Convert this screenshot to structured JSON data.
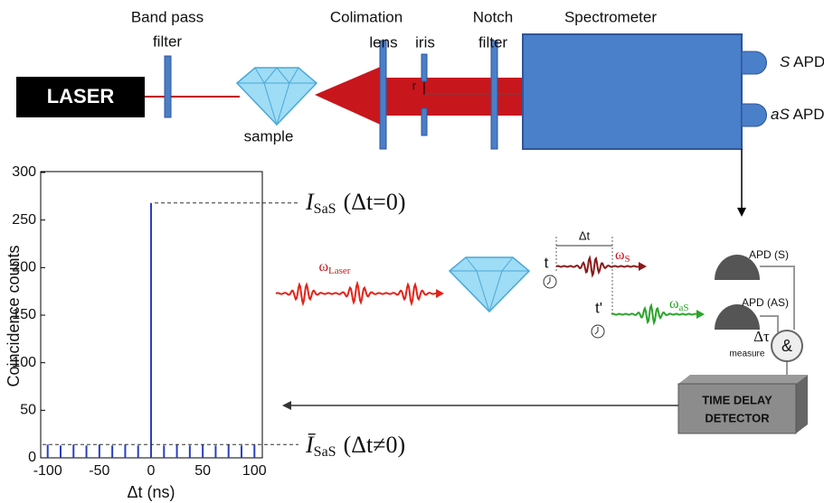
{
  "diagram": {
    "laser": "LASER",
    "band_pass_filter": [
      "Band pass",
      "filter"
    ],
    "sample": "sample",
    "colimation_lens": [
      "Colimation",
      "lens"
    ],
    "iris": "iris",
    "r": "r",
    "notch_filter": [
      "Notch",
      "filter"
    ],
    "spectrometer": "Spectrometer",
    "s_apd": {
      "italic": "S",
      "label": "APD"
    },
    "as_apd": {
      "italic": "aS",
      "label": "APD"
    },
    "omega_laser": {
      "symbol": "ω",
      "sub": "Laser"
    },
    "omega_s": {
      "symbol": "ω",
      "sub": "S"
    },
    "omega_as": {
      "symbol": "ω",
      "sub": "aS"
    },
    "t": "t",
    "t_prime": "t'",
    "delta_t": "Δt",
    "apd_s": "APD (S)",
    "apd_as": "APD (AS)",
    "delta_tau": "Δτ",
    "measure": "measure",
    "and": "&",
    "time_delay_detector": [
      "TIME DELAY",
      "DETECTOR"
    ],
    "i_sas_zero": {
      "symbol": "I",
      "sub": "SaS",
      "condition": "(Δt=0)"
    },
    "i_sas_nonzero": {
      "symbol": "Ī",
      "sub": "SaS",
      "condition": "(Δt≠0)"
    }
  },
  "chart_data": {
    "type": "line",
    "x_label": "Δt (ns)",
    "y_label": "Coincidence counts",
    "x": [
      -100,
      -87.5,
      -75,
      -62.5,
      -50,
      -37.5,
      -25,
      -12.5,
      0,
      12.5,
      25,
      37.5,
      50,
      62.5,
      75,
      87.5,
      100
    ],
    "values": [
      14,
      13,
      14,
      13,
      14,
      13,
      14,
      13,
      268,
      13,
      14,
      13,
      14,
      13,
      14,
      13,
      14
    ],
    "color": "#2b3fbf",
    "xlim": [
      -105,
      105
    ],
    "ylim": [
      0,
      300
    ],
    "xticks": [
      -100,
      -50,
      0,
      50,
      100
    ],
    "yticks": [
      0,
      50,
      100,
      150,
      200,
      250,
      300
    ]
  }
}
